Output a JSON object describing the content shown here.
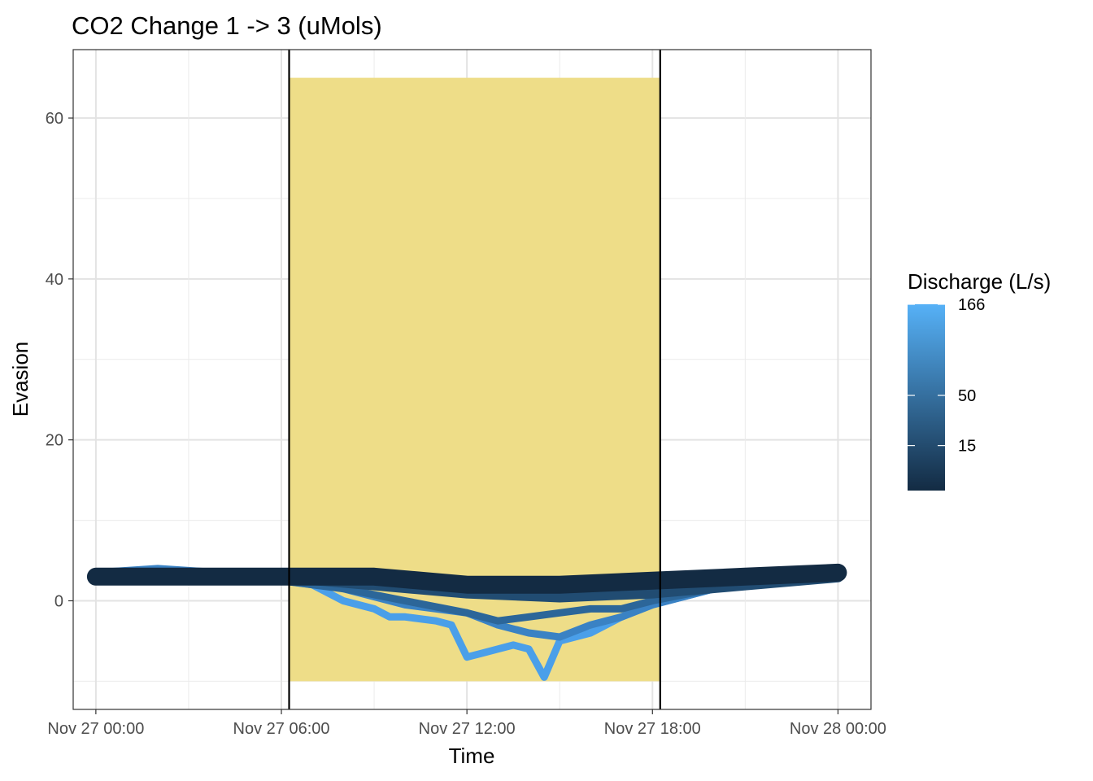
{
  "chart_data": {
    "type": "line",
    "title": "CO2 Change 1 -> 3 (uMols)",
    "xlabel": "Time",
    "ylabel": "Evasion",
    "xlim": [
      "Nov 26 23:16",
      "Nov 28 01:04"
    ],
    "ylim": [
      -13.5,
      68.5
    ],
    "x_ticks": [
      {
        "label": "Nov 27 00:00",
        "hours": 0
      },
      {
        "label": "Nov 27 06:00",
        "hours": 6
      },
      {
        "label": "Nov 27 12:00",
        "hours": 12
      },
      {
        "label": "Nov 27 18:00",
        "hours": 18
      },
      {
        "label": "Nov 28 00:00",
        "hours": 24
      }
    ],
    "y_ticks": [
      0,
      20,
      40,
      60
    ],
    "grid": true,
    "shaded_region": {
      "x_start": "Nov 27 06:15",
      "x_end": "Nov 27 18:15",
      "y_start": -10,
      "y_end": 65,
      "color": "#eedd88"
    },
    "vlines": [
      "Nov 27 06:15",
      "Nov 27 18:15"
    ],
    "legend": {
      "title": "Discharge (L/s)",
      "position": "right",
      "type": "colorbar",
      "breaks": [
        166,
        50,
        15
      ],
      "low_color": "#132b43",
      "high_color": "#56b1f7"
    },
    "series": [
      {
        "discharge": 166,
        "color": "#4a9fe9",
        "x_hours": [
          0,
          2,
          4,
          6,
          7,
          8,
          9,
          9.5,
          10,
          11,
          11.5,
          12,
          12.5,
          13,
          13.5,
          14,
          14.5,
          15,
          16,
          17,
          18,
          20,
          22,
          24
        ],
        "y": [
          3,
          3,
          3,
          2.5,
          2,
          0,
          -1,
          -2,
          -2,
          -2.5,
          -3,
          -7,
          -6.5,
          -6,
          -5.5,
          -6,
          -9.5,
          -5,
          -4,
          -2,
          -0.5,
          1.5,
          2.5,
          3
        ]
      },
      {
        "discharge": 70,
        "color": "#3a82c4",
        "x_hours": [
          0,
          2,
          4,
          6,
          8,
          10,
          12,
          13,
          14,
          15,
          16,
          17,
          18,
          20,
          22,
          24
        ],
        "y": [
          3.5,
          4,
          3.5,
          3,
          1.5,
          -0.5,
          -1.5,
          -3,
          -4,
          -4.5,
          -3,
          -2,
          -0.5,
          1.5,
          2.5,
          3
        ]
      },
      {
        "discharge": 40,
        "color": "#2c6699",
        "x_hours": [
          0,
          2,
          4,
          6,
          8,
          10,
          12,
          13,
          14,
          15,
          16,
          17,
          18,
          20,
          22,
          24
        ],
        "y": [
          3,
          3.5,
          3,
          2.5,
          1.5,
          0,
          -1.5,
          -2.5,
          -2,
          -1.5,
          -1,
          -1,
          0,
          1.5,
          2.5,
          3
        ]
      },
      {
        "discharge": 20,
        "color": "#214c72",
        "x_hours": [
          0,
          3,
          6,
          9,
          12,
          15,
          18,
          21,
          24
        ],
        "y": [
          3,
          3,
          3,
          2,
          1,
          0.5,
          1,
          2,
          3
        ]
      },
      {
        "discharge": 5,
        "color": "#132b43",
        "x_hours": [
          0,
          3,
          6,
          9,
          12,
          15,
          18,
          21,
          24
        ],
        "y": [
          3,
          3,
          3,
          3,
          2,
          2,
          2.5,
          3,
          3.5
        ]
      }
    ]
  }
}
